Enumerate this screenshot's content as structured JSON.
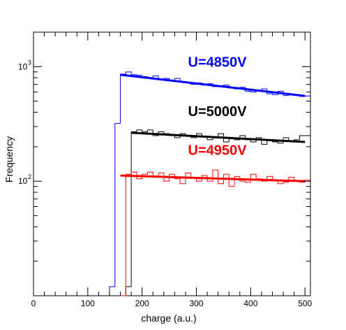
{
  "chart_data": {
    "type": "line",
    "title": "",
    "xlabel": "charge (a.u.)",
    "ylabel": "Frequency",
    "xlim": [
      0,
      510
    ],
    "ylim": [
      10,
      2000
    ],
    "y_scale": "log",
    "grid": false,
    "x_ticks": [
      0,
      100,
      200,
      300,
      400,
      500
    ],
    "x_tick_labels": [
      "0",
      "100",
      "200",
      "300",
      "400",
      "500"
    ],
    "y_ticks": [
      100,
      1000
    ],
    "y_tick_labels": [
      {
        "base": "10",
        "exp": "2"
      },
      {
        "base": "10",
        "exp": "3"
      }
    ],
    "series": [
      {
        "name": "U=4850V",
        "color": "#0000ff",
        "histogram": {
          "x": [
            140,
            150,
            160,
            170,
            180,
            190,
            200,
            210,
            220,
            230,
            240,
            250,
            260,
            270,
            280,
            290,
            300,
            310,
            320,
            330,
            340,
            350,
            360,
            370,
            380,
            390,
            400,
            410,
            420,
            430,
            440,
            450,
            460,
            470,
            480,
            490,
            500
          ],
          "values": [
            12,
            320,
            860,
            900,
            850,
            840,
            820,
            800,
            830,
            780,
            790,
            760,
            790,
            740,
            730,
            700,
            720,
            690,
            710,
            670,
            680,
            690,
            650,
            640,
            660,
            610,
            600,
            620,
            640,
            580,
            570,
            610,
            560,
            570,
            560,
            550,
            555
          ]
        },
        "fit": {
          "x": [
            160,
            500
          ],
          "y": [
            850,
            555
          ]
        }
      },
      {
        "name": "U=5000V",
        "color": "#000000",
        "histogram": {
          "x": [
            170,
            180,
            190,
            200,
            210,
            220,
            230,
            240,
            250,
            260,
            270,
            280,
            290,
            300,
            310,
            320,
            330,
            340,
            350,
            360,
            370,
            380,
            390,
            400,
            410,
            420,
            430,
            440,
            450,
            460,
            470,
            480,
            490,
            500
          ],
          "values": [
            12,
            270,
            280,
            270,
            280,
            250,
            270,
            260,
            250,
            240,
            260,
            250,
            240,
            260,
            245,
            230,
            240,
            260,
            220,
            240,
            230,
            250,
            230,
            220,
            240,
            210,
            230,
            220,
            215,
            240,
            225,
            230,
            250,
            250
          ]
        },
        "fit": {
          "x": [
            180,
            500
          ],
          "y": [
            265,
            220
          ]
        }
      },
      {
        "name": "U=4950V",
        "color": "#ff0000",
        "histogram": {
          "x": [
            160,
            170,
            180,
            190,
            200,
            210,
            220,
            230,
            240,
            250,
            260,
            270,
            280,
            290,
            300,
            310,
            320,
            330,
            340,
            350,
            360,
            370,
            380,
            390,
            400,
            410,
            420,
            430,
            440,
            450,
            460,
            470,
            480,
            490,
            500
          ],
          "values": [
            10,
            115,
            120,
            105,
            115,
            120,
            110,
            118,
            100,
            115,
            105,
            95,
            118,
            108,
            100,
            112,
            100,
            125,
            95,
            115,
            90,
            110,
            100,
            98,
            115,
            105,
            100,
            110,
            102,
            95,
            98,
            108,
            100,
            98,
            102
          ]
        },
        "fit": {
          "x": [
            160,
            500
          ],
          "y": [
            112,
            100
          ]
        }
      }
    ],
    "annotations": [
      {
        "text": "U=4850V",
        "color": "#0000ff",
        "x": 300,
        "y": 1000
      },
      {
        "text": "U=5000V",
        "color": "#000000",
        "x": 300,
        "y": 370
      },
      {
        "text": "U=4950V",
        "color": "#ff0000",
        "x": 300,
        "y": 170
      }
    ]
  }
}
